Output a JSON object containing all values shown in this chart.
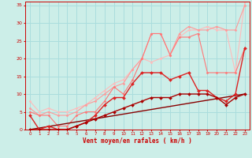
{
  "xlabel": "Vent moyen/en rafales ( km/h )",
  "background_color": "#cceee8",
  "grid_color": "#aadddd",
  "xlim": [
    -0.5,
    23.5
  ],
  "ylim": [
    0,
    36
  ],
  "yticks": [
    0,
    5,
    10,
    15,
    20,
    25,
    30,
    35
  ],
  "xticks": [
    0,
    1,
    2,
    3,
    4,
    5,
    6,
    7,
    8,
    9,
    10,
    11,
    12,
    13,
    14,
    15,
    16,
    17,
    18,
    19,
    20,
    21,
    22,
    23
  ],
  "series": [
    {
      "x": [
        0,
        1,
        2,
        3,
        4,
        5,
        6,
        7,
        8,
        9,
        10,
        11,
        12,
        13,
        14,
        15,
        16,
        17,
        18,
        19,
        20,
        21,
        22,
        23
      ],
      "y": [
        8,
        5,
        6,
        5,
        5,
        6,
        7,
        9,
        11,
        13,
        14,
        17,
        20,
        19,
        20,
        21,
        26,
        28,
        28,
        29,
        28,
        28,
        16,
        36
      ],
      "color": "#ffbbbb",
      "lw": 0.8,
      "marker": "D",
      "ms": 1.5,
      "zorder": 2
    },
    {
      "x": [
        0,
        1,
        2,
        3,
        4,
        5,
        6,
        7,
        8,
        9,
        10,
        11,
        12,
        13,
        14,
        15,
        16,
        17,
        18,
        19,
        20,
        21,
        22,
        23
      ],
      "y": [
        6,
        4,
        5,
        4,
        4,
        5,
        7,
        8,
        10,
        12,
        13,
        17,
        20,
        27,
        27,
        21,
        27,
        29,
        28,
        28,
        29,
        28,
        28,
        35
      ],
      "color": "#ff9999",
      "lw": 0.8,
      "marker": "D",
      "ms": 1.5,
      "zorder": 2
    },
    {
      "x": [
        0,
        1,
        2,
        3,
        4,
        5,
        6,
        7,
        8,
        9,
        10,
        11,
        12,
        13,
        14,
        15,
        16,
        17,
        18,
        19,
        20,
        21,
        22,
        23
      ],
      "y": [
        5,
        4,
        4,
        1,
        1,
        4,
        5,
        5,
        8,
        12,
        10,
        14,
        20,
        27,
        27,
        21,
        26,
        26,
        27,
        16,
        16,
        16,
        16,
        23
      ],
      "color": "#ff7777",
      "lw": 0.8,
      "marker": "D",
      "ms": 1.5,
      "zorder": 3
    },
    {
      "x": [
        0,
        1,
        2,
        3,
        4,
        5,
        6,
        7,
        8,
        9,
        10,
        11,
        12,
        13,
        14,
        15,
        16,
        17,
        18,
        19,
        20,
        21,
        22,
        23
      ],
      "y": [
        4,
        0,
        1,
        0,
        0,
        1,
        2,
        4,
        7,
        9,
        9,
        13,
        16,
        16,
        16,
        14,
        15,
        16,
        11,
        11,
        9,
        8,
        10,
        23
      ],
      "color": "#dd2222",
      "lw": 1.0,
      "marker": "D",
      "ms": 2.0,
      "zorder": 4
    },
    {
      "x": [
        0,
        1,
        2,
        3,
        4,
        5,
        6,
        7,
        8,
        9,
        10,
        11,
        12,
        13,
        14,
        15,
        16,
        17,
        18,
        19,
        20,
        21,
        22,
        23
      ],
      "y": [
        0,
        0,
        0,
        0,
        0,
        1,
        2,
        3,
        4,
        5,
        6,
        7,
        8,
        9,
        9,
        9,
        10,
        10,
        10,
        10,
        9,
        7,
        9,
        10
      ],
      "color": "#aa0000",
      "lw": 1.0,
      "marker": "D",
      "ms": 2.0,
      "zorder": 4
    },
    {
      "x": [
        0,
        23
      ],
      "y": [
        0,
        10
      ],
      "color": "#880000",
      "lw": 1.0,
      "marker": null,
      "ms": 0,
      "zorder": 3
    }
  ]
}
